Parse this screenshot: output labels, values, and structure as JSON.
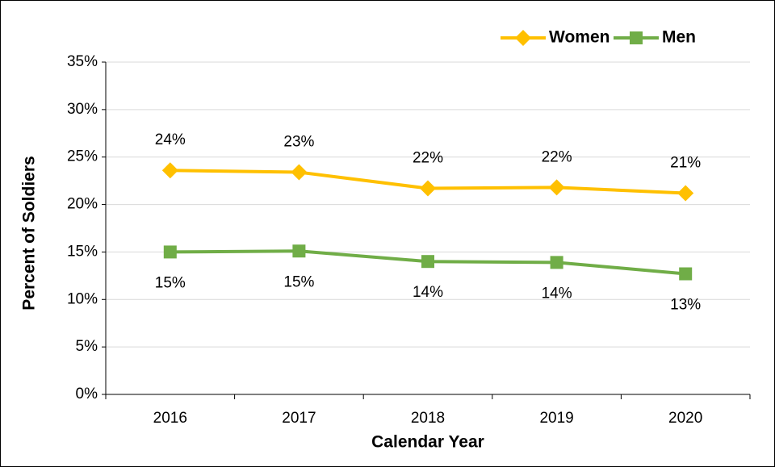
{
  "chart_data": {
    "type": "line",
    "x_label": "Calendar Year",
    "y_label": "Percent of Soldiers",
    "categories": [
      "2016",
      "2017",
      "2018",
      "2019",
      "2020"
    ],
    "series": [
      {
        "name": "Women",
        "color": "#FFC000",
        "marker": "diamond",
        "values": [
          23.6,
          23.4,
          21.7,
          21.8,
          21.2
        ],
        "value_labels": [
          "24%",
          "23%",
          "22%",
          "22%",
          "21%"
        ]
      },
      {
        "name": "Men",
        "color": "#70AD47",
        "marker": "square",
        "values": [
          15.0,
          15.1,
          14.0,
          13.9,
          12.7
        ],
        "value_labels": [
          "15%",
          "15%",
          "14%",
          "14%",
          "13%"
        ]
      }
    ],
    "ylim": [
      0,
      35
    ],
    "yticks": [
      {
        "value": 0,
        "label": "0%"
      },
      {
        "value": 5,
        "label": "5%"
      },
      {
        "value": 10,
        "label": "10%"
      },
      {
        "value": 15,
        "label": "15%"
      },
      {
        "value": 20,
        "label": "20%"
      },
      {
        "value": 25,
        "label": "25%"
      },
      {
        "value": 30,
        "label": "30%"
      },
      {
        "value": 35,
        "label": "35%"
      }
    ],
    "grid": true,
    "legend": "top-right"
  }
}
